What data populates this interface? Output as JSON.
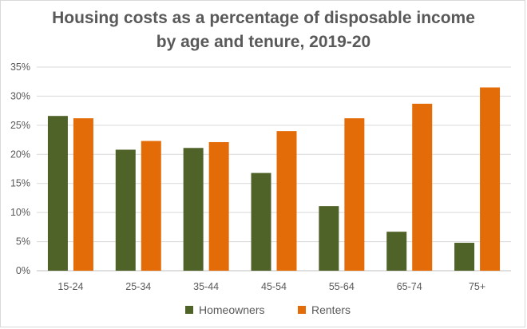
{
  "chart_data": {
    "type": "bar",
    "title_line1": "Housing costs as a percentage of disposable income",
    "title_line2": "by age and tenure, 2019-20",
    "categories": [
      "15-24",
      "25-34",
      "35-44",
      "45-54",
      "55-64",
      "65-74",
      "75+"
    ],
    "series": [
      {
        "name": "Homeowners",
        "color": "#4f6228",
        "values": [
          26.6,
          20.8,
          21.1,
          16.8,
          11.1,
          6.7,
          4.8
        ]
      },
      {
        "name": "Renters",
        "color": "#e36c09",
        "values": [
          26.2,
          22.3,
          22.1,
          24.0,
          26.2,
          28.7,
          31.5
        ]
      }
    ],
    "yticks": [
      "0%",
      "5%",
      "10%",
      "15%",
      "20%",
      "25%",
      "30%",
      "35%"
    ],
    "ylim": [
      0,
      35
    ],
    "grid": true,
    "legend_position": "bottom"
  }
}
